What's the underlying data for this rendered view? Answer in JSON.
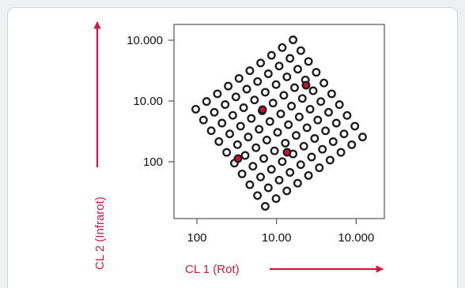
{
  "chart_data": {
    "type": "scatter",
    "xlabel": "CL 1 (Rot)",
    "ylabel": "CL 2 (Infrarot)",
    "xticks": [
      "100",
      "10.00",
      "10.000"
    ],
    "yticks": [
      "10.000",
      "10.00",
      "100"
    ],
    "grid": false,
    "scale": "log",
    "points": [
      [
        0.5,
        0.4
      ],
      [
        0.5,
        0.9
      ],
      [
        0.5,
        1.4
      ],
      [
        0.5,
        1.9
      ],
      [
        0.5,
        2.4
      ],
      [
        0.5,
        2.9
      ],
      [
        0.5,
        3.4
      ],
      [
        0.5,
        3.9
      ],
      [
        0.5,
        4.4
      ],
      [
        0.5,
        4.9
      ],
      [
        1.0,
        0.4
      ],
      [
        1.0,
        0.9
      ],
      [
        1.0,
        1.4
      ],
      [
        1.0,
        1.9
      ],
      [
        1.0,
        2.4
      ],
      [
        1.0,
        2.9
      ],
      [
        1.0,
        3.4
      ],
      [
        1.0,
        3.9
      ],
      [
        1.0,
        4.4
      ],
      [
        1.0,
        4.9
      ],
      [
        1.5,
        0.4
      ],
      [
        1.5,
        0.9
      ],
      [
        1.5,
        1.4
      ],
      [
        1.5,
        1.9
      ],
      [
        1.5,
        2.4
      ],
      [
        1.5,
        2.9
      ],
      [
        1.5,
        3.4
      ],
      [
        1.5,
        3.9
      ],
      [
        1.5,
        4.4
      ],
      [
        1.5,
        4.9
      ],
      [
        2.0,
        0.4
      ],
      [
        2.0,
        0.9
      ],
      [
        2.0,
        1.4
      ],
      [
        2.0,
        1.9
      ],
      [
        2.0,
        2.4
      ],
      [
        2.0,
        2.9
      ],
      [
        2.0,
        3.4
      ],
      [
        2.0,
        3.9
      ],
      [
        2.0,
        4.4
      ],
      [
        2.0,
        4.9
      ],
      [
        2.5,
        0.4
      ],
      [
        2.5,
        0.9
      ],
      [
        2.5,
        1.4
      ],
      [
        2.5,
        1.9
      ],
      [
        2.5,
        2.4
      ],
      [
        2.5,
        2.9
      ],
      [
        2.5,
        3.4
      ],
      [
        2.5,
        3.9
      ],
      [
        2.5,
        4.4
      ],
      [
        2.5,
        4.9
      ],
      [
        3.0,
        0.4
      ],
      [
        3.0,
        0.9
      ],
      [
        3.0,
        1.4
      ],
      [
        3.0,
        1.9
      ],
      [
        3.0,
        2.4
      ],
      [
        3.0,
        2.9
      ],
      [
        3.0,
        3.4
      ],
      [
        3.0,
        3.9
      ],
      [
        3.0,
        4.4
      ],
      [
        3.0,
        4.9
      ],
      [
        3.5,
        0.4
      ],
      [
        3.5,
        0.9
      ],
      [
        3.5,
        1.4
      ],
      [
        3.5,
        1.9
      ],
      [
        3.5,
        2.4
      ],
      [
        3.5,
        2.9
      ],
      [
        3.5,
        3.4
      ],
      [
        3.5,
        3.9
      ],
      [
        3.5,
        4.4
      ],
      [
        3.5,
        4.9
      ],
      [
        4.0,
        0.4
      ],
      [
        4.0,
        0.9
      ],
      [
        4.0,
        1.4
      ],
      [
        4.0,
        1.9
      ],
      [
        4.0,
        2.4
      ],
      [
        4.0,
        2.9
      ],
      [
        4.0,
        3.4
      ],
      [
        4.0,
        3.9
      ],
      [
        4.0,
        4.4
      ],
      [
        4.0,
        4.9
      ],
      [
        4.5,
        0.4
      ],
      [
        4.5,
        0.9
      ],
      [
        4.5,
        1.4
      ],
      [
        4.5,
        1.9
      ],
      [
        4.5,
        2.4
      ],
      [
        4.5,
        2.9
      ],
      [
        4.5,
        3.4
      ],
      [
        4.5,
        3.9
      ],
      [
        4.5,
        4.4
      ],
      [
        4.5,
        4.9
      ],
      [
        5.0,
        0.4
      ],
      [
        5.0,
        0.9
      ],
      [
        5.0,
        1.4
      ],
      [
        5.0,
        1.9
      ],
      [
        5.0,
        2.4
      ],
      [
        5.0,
        2.9
      ],
      [
        5.0,
        3.4
      ],
      [
        5.0,
        3.9
      ],
      [
        5.0,
        4.4
      ],
      [
        5.0,
        4.9
      ]
    ],
    "highlighted_points": [
      [
        1.5,
        1.8
      ],
      [
        3.0,
        2.2
      ],
      [
        1.7,
        3.6
      ],
      [
        4.0,
        3.9
      ]
    ],
    "marker_color": "#1a1a1a",
    "highlight_color": "#c8102e",
    "axis_label_color": "#d4153f"
  }
}
